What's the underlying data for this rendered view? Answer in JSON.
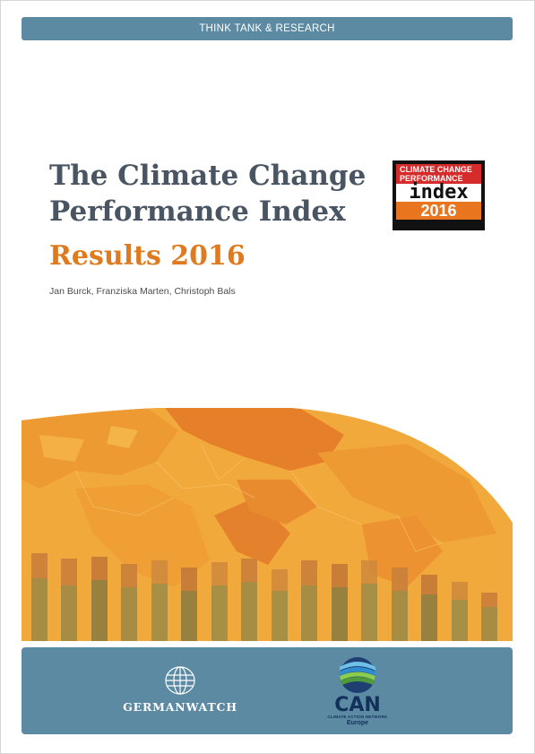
{
  "header": {
    "banner_label": "THINK TANK & RESEARCH"
  },
  "cover": {
    "title": "The Climate Change Performance Index",
    "subtitle": "Results 2016",
    "authors": "Jan Burck, Franziska Marten, Christoph Bals"
  },
  "index_logo": {
    "line1": "CLIMATE CHANGE",
    "line2": "PERFORMANCE",
    "word": "index",
    "year": "2016",
    "colors": {
      "red": "#d52b2b",
      "orange": "#e9761e",
      "black": "#111111"
    }
  },
  "footer": {
    "germanwatch_label": "GERMANWATCH",
    "can_label": "CAN",
    "can_subtitle": "CLIMATE ACTION NETWORK",
    "can_region": "Europe"
  },
  "colors": {
    "banner": "#5b8aa2",
    "title": "#4a5563",
    "accent": "#e07a1f",
    "map_base": "#f2a93b"
  }
}
